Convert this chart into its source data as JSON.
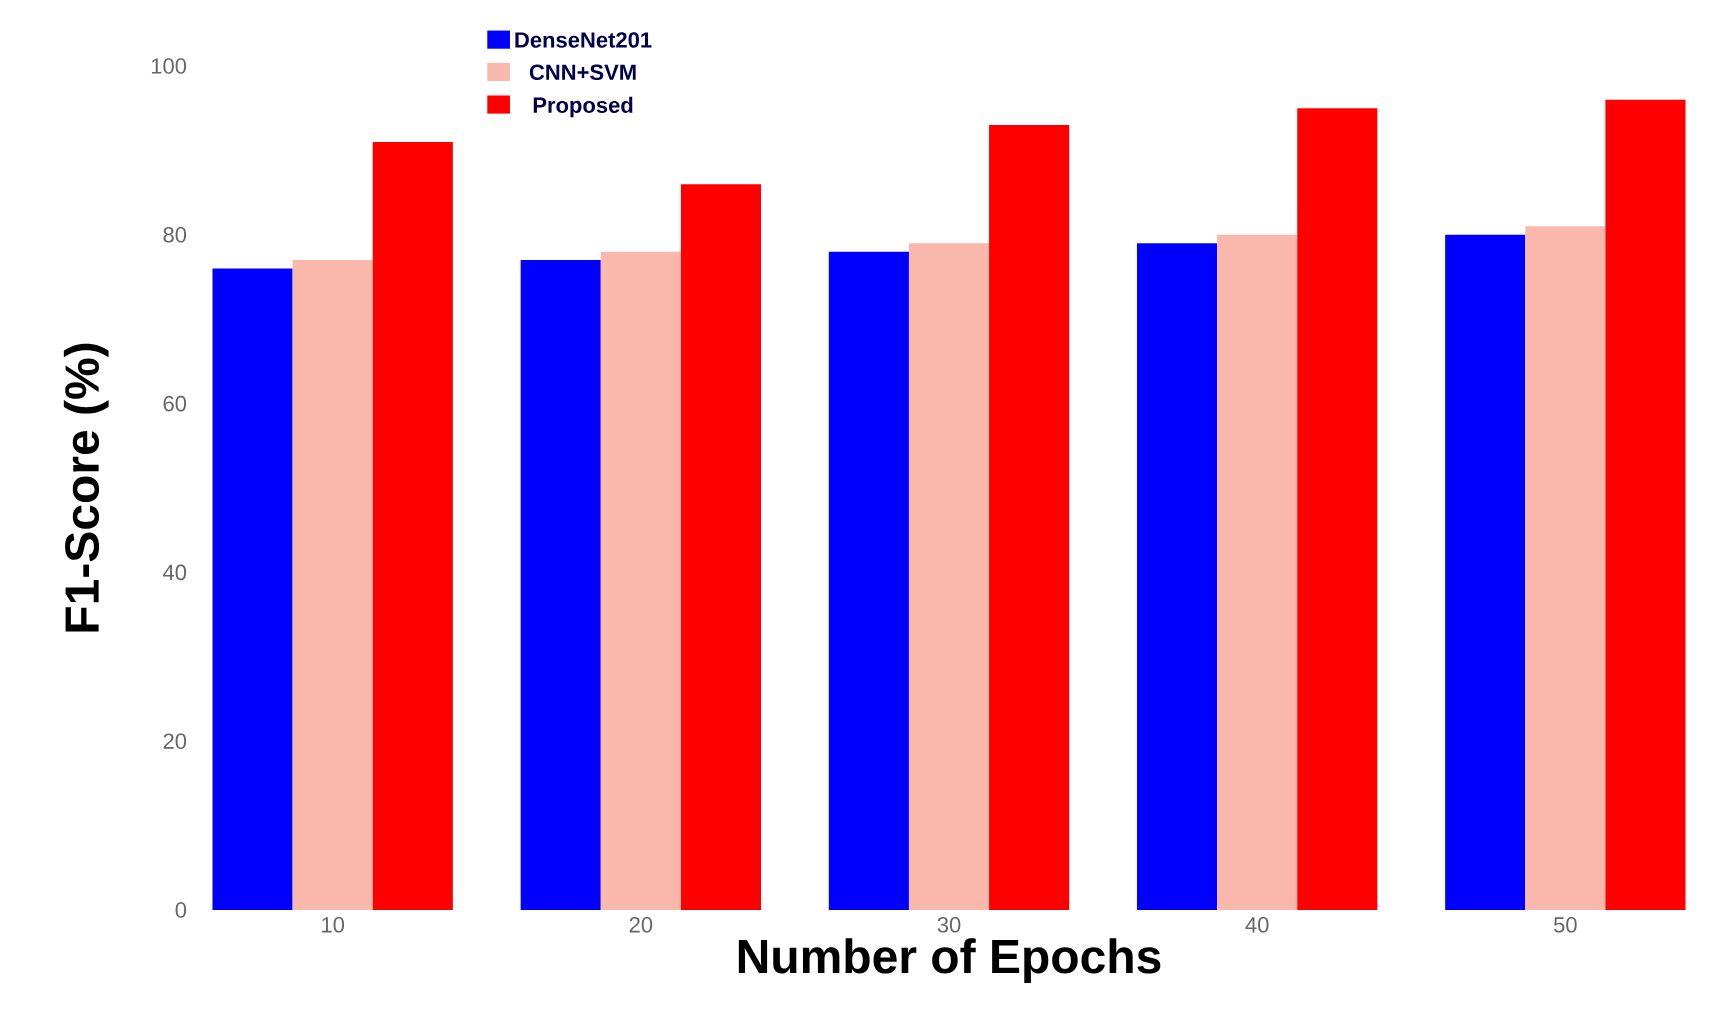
{
  "chart_data": {
    "type": "bar",
    "xlabel": "Number of Epochs",
    "ylabel": "F1-Score (%)",
    "categories": [
      "10",
      "20",
      "30",
      "40",
      "50"
    ],
    "series": [
      {
        "name": "DenseNet201",
        "color": "#0000ff",
        "values": [
          76,
          77,
          78,
          79,
          80
        ]
      },
      {
        "name": "CNN+SVM",
        "color": "#f9b8ab",
        "values": [
          77,
          78,
          79,
          80,
          81
        ]
      },
      {
        "name": "Proposed",
        "color": "#ff0000",
        "values": [
          91,
          86,
          93,
          95,
          96
        ]
      }
    ],
    "ylim": [
      0,
      100
    ],
    "yticks": [
      0,
      20,
      40,
      60,
      80,
      100
    ],
    "grid": false,
    "legend": "top left"
  }
}
